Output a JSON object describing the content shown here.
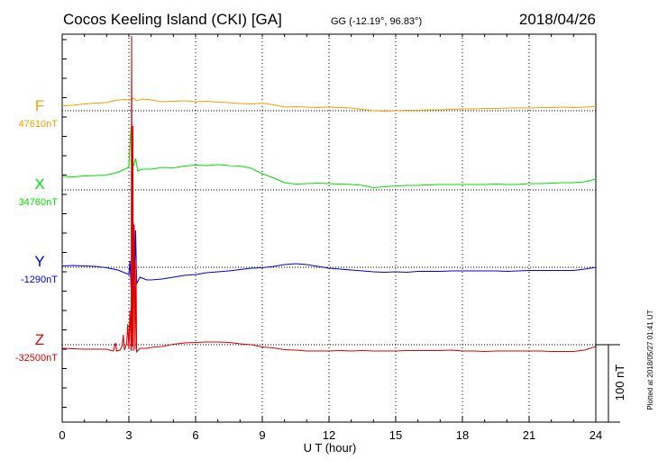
{
  "chart_data": {
    "type": "line",
    "title": "Cocos Keeling Island (CKI)  [GA]",
    "coords": "GG (-12.19°,  96.83°)",
    "date": "2018/04/26",
    "xlabel": "U T (hour)",
    "xlim": [
      0,
      24
    ],
    "xticks": [
      0,
      3,
      6,
      9,
      12,
      15,
      18,
      21,
      24
    ],
    "scale_label": "100 nT",
    "plotted_note": "Plotted at 2018/05/27 01:41 UT",
    "series": [
      {
        "name": "F",
        "baseline_label": "47610nT",
        "color": "#f0a000",
        "points": [
          [
            0,
            117.5
          ],
          [
            0.5,
            117
          ],
          [
            1,
            115.5
          ],
          [
            1.5,
            114.5
          ],
          [
            2,
            114
          ],
          [
            2.4,
            111.5
          ],
          [
            2.8,
            110.5
          ],
          [
            3.05,
            111
          ],
          [
            3.2,
            109
          ],
          [
            3.35,
            112
          ],
          [
            3.6,
            110
          ],
          [
            4,
            111
          ],
          [
            4.5,
            113
          ],
          [
            5,
            112.5
          ],
          [
            5.5,
            112
          ],
          [
            6,
            113
          ],
          [
            6.5,
            112.5
          ],
          [
            7,
            113.5
          ],
          [
            7.5,
            114
          ],
          [
            8,
            115
          ],
          [
            8.5,
            115.5
          ],
          [
            9,
            114.5
          ],
          [
            9.5,
            116.5
          ],
          [
            10,
            119
          ],
          [
            10.5,
            118.5
          ],
          [
            11,
            119
          ],
          [
            11.5,
            119.5
          ],
          [
            12,
            119
          ],
          [
            12.5,
            119.5
          ],
          [
            13,
            120
          ],
          [
            13.5,
            121.5
          ],
          [
            14,
            123
          ],
          [
            14.5,
            123.5
          ],
          [
            15,
            123
          ],
          [
            15.5,
            122.5
          ],
          [
            16,
            122.5
          ],
          [
            16.5,
            122
          ],
          [
            17,
            122
          ],
          [
            17.5,
            121.5
          ],
          [
            18,
            121
          ],
          [
            18.5,
            121
          ],
          [
            19,
            120.5
          ],
          [
            19.5,
            120.5
          ],
          [
            20,
            120
          ],
          [
            20.5,
            120
          ],
          [
            21,
            120
          ],
          [
            21.5,
            119.5
          ],
          [
            22,
            119.5
          ],
          [
            22.5,
            119
          ],
          [
            23,
            119.5
          ],
          [
            23.5,
            119
          ],
          [
            24,
            118.5
          ]
        ]
      },
      {
        "name": "X",
        "baseline_label": "34760nT",
        "color": "#00e000",
        "points": [
          [
            0,
            196
          ],
          [
            0.5,
            196.5
          ],
          [
            1,
            195.5
          ],
          [
            1.5,
            195
          ],
          [
            2,
            194.5
          ],
          [
            2.5,
            191.5
          ],
          [
            2.8,
            188
          ],
          [
            3.0,
            186
          ],
          [
            3.05,
            160
          ],
          [
            3.1,
            140
          ],
          [
            3.15,
            178
          ],
          [
            3.2,
            185
          ],
          [
            3.3,
            176
          ],
          [
            3.4,
            190
          ],
          [
            3.6,
            188
          ],
          [
            4,
            188
          ],
          [
            4.5,
            186
          ],
          [
            5,
            186.5
          ],
          [
            5.5,
            184.5
          ],
          [
            6,
            183.5
          ],
          [
            6.5,
            184
          ],
          [
            7,
            183
          ],
          [
            7.5,
            184
          ],
          [
            8,
            184.5
          ],
          [
            8.5,
            187
          ],
          [
            9,
            193
          ],
          [
            9.5,
            197.5
          ],
          [
            10,
            203
          ],
          [
            10.5,
            204.5
          ],
          [
            11,
            204
          ],
          [
            11.5,
            203.5
          ],
          [
            12,
            204
          ],
          [
            12.5,
            204.5
          ],
          [
            13,
            205
          ],
          [
            13.5,
            206
          ],
          [
            14,
            208.5
          ],
          [
            14.5,
            207.5
          ],
          [
            15,
            206.5
          ],
          [
            15.5,
            206
          ],
          [
            16,
            206
          ],
          [
            16.5,
            205.5
          ],
          [
            17,
            205
          ],
          [
            17.5,
            205
          ],
          [
            18,
            205
          ],
          [
            18.5,
            205
          ],
          [
            19,
            205
          ],
          [
            19.5,
            204.5
          ],
          [
            20,
            205
          ],
          [
            20.5,
            205
          ],
          [
            21,
            204
          ],
          [
            21.5,
            204
          ],
          [
            22,
            203.5
          ],
          [
            22.5,
            203
          ],
          [
            23,
            203
          ],
          [
            23.5,
            202
          ],
          [
            24,
            199
          ]
        ]
      },
      {
        "name": "Y",
        "baseline_label": "-1290nT",
        "color": "#0000e0",
        "points": [
          [
            0,
            295.5
          ],
          [
            0.5,
            295
          ],
          [
            1,
            295.5
          ],
          [
            1.5,
            296
          ],
          [
            2,
            297.5
          ],
          [
            2.5,
            300
          ],
          [
            2.8,
            303
          ],
          [
            3.0,
            305
          ],
          [
            3.05,
            290
          ],
          [
            3.1,
            320
          ],
          [
            3.15,
            285
          ],
          [
            3.2,
            248
          ],
          [
            3.25,
            310
          ],
          [
            3.3,
            256
          ],
          [
            3.35,
            315
          ],
          [
            3.5,
            308
          ],
          [
            3.8,
            311
          ],
          [
            4,
            311
          ],
          [
            4.5,
            310
          ],
          [
            5,
            308
          ],
          [
            5.5,
            306
          ],
          [
            6,
            305
          ],
          [
            6.5,
            303
          ],
          [
            7,
            302
          ],
          [
            7.5,
            301
          ],
          [
            8,
            299.5
          ],
          [
            8.5,
            298
          ],
          [
            9,
            297.5
          ],
          [
            9.5,
            296
          ],
          [
            10,
            294
          ],
          [
            10.5,
            293
          ],
          [
            11,
            294
          ],
          [
            11.5,
            296
          ],
          [
            12,
            298
          ],
          [
            12.5,
            299
          ],
          [
            13,
            300
          ],
          [
            13.5,
            301
          ],
          [
            14,
            302
          ],
          [
            14.5,
            302.5
          ],
          [
            15,
            302
          ],
          [
            15.5,
            302.5
          ],
          [
            16,
            301.5
          ],
          [
            16.5,
            301.5
          ],
          [
            17,
            301.5
          ],
          [
            17.5,
            301
          ],
          [
            18,
            301
          ],
          [
            18.5,
            301
          ],
          [
            19,
            301
          ],
          [
            19.5,
            301
          ],
          [
            20,
            301.5
          ],
          [
            20.5,
            301
          ],
          [
            21,
            300.5
          ],
          [
            21.5,
            300.5
          ],
          [
            22,
            300.5
          ],
          [
            22.5,
            300.5
          ],
          [
            23,
            300.5
          ],
          [
            23.5,
            299
          ],
          [
            24,
            297
          ]
        ]
      },
      {
        "name": "Z",
        "baseline_label": "-32500nT",
        "color": "#e00000",
        "points": [
          [
            0,
            387
          ],
          [
            0.5,
            387.5
          ],
          [
            1,
            388
          ],
          [
            1.5,
            388
          ],
          [
            2,
            388
          ],
          [
            2.3,
            390
          ],
          [
            2.4,
            381
          ],
          [
            2.45,
            390
          ],
          [
            2.6,
            389
          ],
          [
            2.7,
            384
          ],
          [
            2.75,
            372
          ],
          [
            2.8,
            389
          ],
          [
            2.9,
            382
          ],
          [
            2.95,
            360
          ],
          [
            3.0,
            388
          ],
          [
            3.05,
            345
          ],
          [
            3.1,
            390
          ],
          [
            3.12,
            40
          ],
          [
            3.15,
            385
          ],
          [
            3.18,
            140
          ],
          [
            3.2,
            390
          ],
          [
            3.24,
            250
          ],
          [
            3.28,
            388
          ],
          [
            3.32,
            290
          ],
          [
            3.35,
            391
          ],
          [
            3.5,
            387
          ],
          [
            3.8,
            387
          ],
          [
            4,
            386
          ],
          [
            4.5,
            385
          ],
          [
            5,
            382.5
          ],
          [
            5.5,
            381
          ],
          [
            6,
            380.5
          ],
          [
            6.5,
            380
          ],
          [
            7,
            380
          ],
          [
            7.5,
            380.5
          ],
          [
            8,
            382
          ],
          [
            8.5,
            383
          ],
          [
            9,
            385.5
          ],
          [
            9.5,
            386.5
          ],
          [
            10,
            388.5
          ],
          [
            10.5,
            389
          ],
          [
            11,
            390
          ],
          [
            11.5,
            390
          ],
          [
            12,
            390
          ],
          [
            12.5,
            389.5
          ],
          [
            13,
            390
          ],
          [
            13.5,
            389.5
          ],
          [
            14,
            390
          ],
          [
            14.5,
            390
          ],
          [
            15,
            390
          ],
          [
            15.5,
            389.5
          ],
          [
            16,
            389.5
          ],
          [
            16.5,
            389.5
          ],
          [
            17,
            389.5
          ],
          [
            17.5,
            389
          ],
          [
            18,
            390
          ],
          [
            18.5,
            390
          ],
          [
            19,
            390.5
          ],
          [
            19.5,
            390
          ],
          [
            20,
            390
          ],
          [
            20.5,
            390
          ],
          [
            21,
            390
          ],
          [
            21.5,
            390
          ],
          [
            22,
            390.5
          ],
          [
            22.5,
            390.5
          ],
          [
            23,
            390.5
          ],
          [
            23.5,
            389
          ],
          [
            24,
            385
          ]
        ]
      }
    ]
  }
}
